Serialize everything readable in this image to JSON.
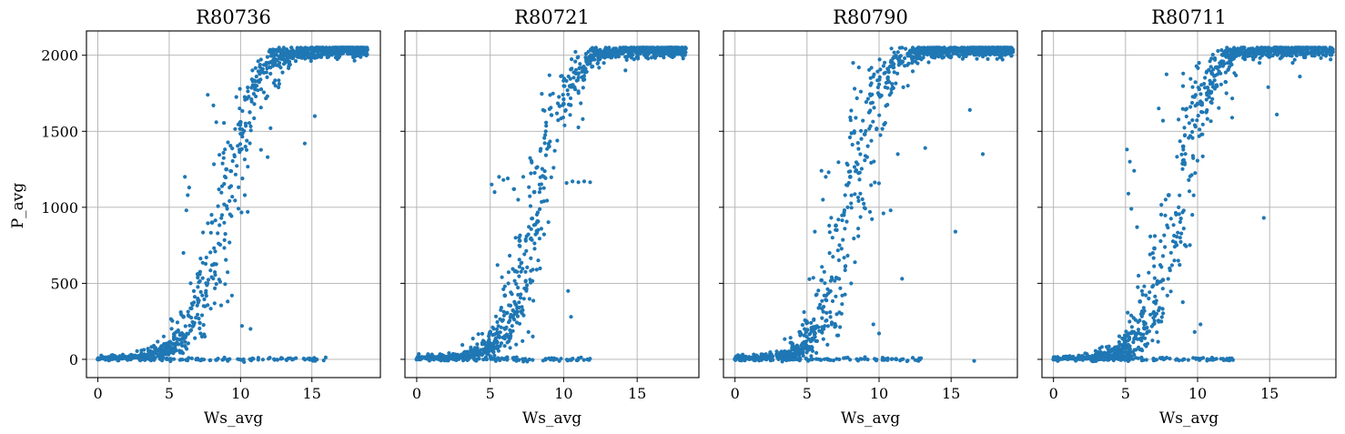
{
  "figure": {
    "ylabel": "P_avg"
  },
  "chart_data": [
    {
      "type": "scatter",
      "title": "R80736",
      "xlabel": "Ws_avg",
      "ylabel": "P_avg",
      "xlim": [
        -0.8,
        19.8
      ],
      "ylim": [
        -120,
        2160
      ],
      "xticks": [
        0,
        5,
        10,
        15
      ],
      "yticks": [
        0,
        500,
        1000,
        1500,
        2000
      ],
      "grid": true,
      "color": "#1f77b4",
      "curve": {
        "mid": 8.9,
        "width": 2.1,
        "pmax": 2040,
        "spread": 1.05,
        "xmax": 18.9
      },
      "series": [
        {
          "x": [
            0,
            1,
            2,
            3,
            4,
            5,
            6,
            7,
            8,
            9,
            10,
            11,
            12,
            13,
            14,
            15,
            16,
            17,
            18,
            18.8
          ],
          "y": [
            0,
            2,
            5,
            15,
            40,
            110,
            280,
            560,
            900,
            1250,
            1560,
            1800,
            1950,
            2010,
            2030,
            2035,
            2040,
            2040,
            2040,
            2045
          ]
        }
      ],
      "zero_line": {
        "x": [
          0,
          16
        ],
        "y": [
          0,
          0
        ]
      },
      "outliers": {
        "x": [
          6.1,
          6.4,
          6.3,
          6.2,
          7.7,
          8.1,
          8.3,
          10.3,
          10.5,
          12.1,
          7.0,
          7.3,
          6.5,
          6.0,
          8.0,
          9.1,
          9.4,
          11.9,
          14.5,
          15.2,
          10.1,
          10.7,
          5.5,
          5.8,
          5.9,
          7.5,
          6.8,
          7.2
        ],
        "y": [
          1200,
          1130,
          1080,
          980,
          1740,
          1670,
          1560,
          1080,
          970,
          1520,
          400,
          290,
          500,
          700,
          620,
          380,
          420,
          1330,
          1420,
          1600,
          220,
          200,
          180,
          130,
          90,
          150,
          140,
          170
        ]
      }
    },
    {
      "type": "scatter",
      "title": "R80721",
      "xlabel": "Ws_avg",
      "ylabel": "",
      "xlim": [
        -0.8,
        19.2
      ],
      "ylim": [
        -120,
        2160
      ],
      "xticks": [
        0,
        5,
        10,
        15
      ],
      "yticks": [
        0,
        500,
        1000,
        1500,
        2000
      ],
      "grid": true,
      "color": "#1f77b4",
      "curve": {
        "mid": 8.3,
        "width": 1.95,
        "pmax": 2040,
        "spread": 0.95,
        "xmax": 18.3
      },
      "series": [
        {
          "x": [
            0,
            1,
            2,
            3,
            4,
            5,
            6,
            7,
            8,
            9,
            10,
            11,
            12,
            13,
            14,
            15,
            16,
            17,
            18,
            18.3
          ],
          "y": [
            0,
            3,
            8,
            25,
            70,
            180,
            420,
            780,
            1100,
            1400,
            1680,
            1880,
            1990,
            2030,
            2035,
            2040,
            2040,
            2040,
            2040,
            2045
          ]
        }
      ],
      "zero_line": {
        "x": [
          0,
          12
        ],
        "y": [
          0,
          0
        ]
      },
      "outliers": {
        "x": [
          5.1,
          5.3,
          5.6,
          5.9,
          6.2,
          6.6,
          6.9,
          10.2,
          10.6,
          11.0,
          11.4,
          11.8,
          8.6,
          10.3,
          10.5,
          11.3,
          7.6,
          7.9,
          5.5,
          5.8,
          6.0,
          6.4,
          7.2,
          6.7,
          14.2
        ],
        "y": [
          1150,
          1100,
          1200,
          1180,
          1190,
          1120,
          1050,
          1160,
          1170,
          1165,
          1170,
          1165,
          1640,
          450,
          280,
          1580,
          180,
          150,
          620,
          540,
          480,
          440,
          120,
          300,
          1900
        ]
      }
    },
    {
      "type": "scatter",
      "title": "R80790",
      "xlabel": "Ws_avg",
      "ylabel": "",
      "xlim": [
        -0.8,
        19.6
      ],
      "ylim": [
        -120,
        2160
      ],
      "xticks": [
        0,
        5,
        10,
        15
      ],
      "yticks": [
        0,
        500,
        1000,
        1500,
        2000
      ],
      "grid": true,
      "color": "#1f77b4",
      "curve": {
        "mid": 8.0,
        "width": 1.85,
        "pmax": 2040,
        "spread": 1.25,
        "xmax": 19.3
      },
      "series": [
        {
          "x": [
            0,
            1,
            2,
            3,
            4,
            5,
            6,
            7,
            8,
            9,
            10,
            11,
            12,
            13,
            14,
            15,
            16,
            17,
            18,
            19.2
          ],
          "y": [
            0,
            3,
            10,
            30,
            90,
            240,
            520,
            880,
            1200,
            1480,
            1740,
            1920,
            2010,
            2030,
            2035,
            2040,
            2040,
            2040,
            2040,
            2045
          ]
        }
      ],
      "zero_line": {
        "x": [
          0,
          13
        ],
        "y": [
          0,
          0
        ]
      },
      "outliers": {
        "x": [
          6.0,
          6.3,
          6.5,
          6.1,
          8.2,
          8.6,
          8.3,
          10.3,
          10.8,
          11.3,
          11.6,
          12.0,
          13.2,
          15.3,
          16.3,
          17.2,
          5.9,
          6.2,
          6.6,
          7.0,
          7.4,
          9.6,
          10.0,
          5.5,
          5.7,
          16.6
        ],
        "y": [
          1240,
          1200,
          1230,
          1050,
          1950,
          1920,
          1780,
          960,
          980,
          1350,
          530,
          1800,
          1390,
          840,
          1640,
          1350,
          360,
          420,
          310,
          220,
          300,
          230,
          170,
          180,
          120,
          -10
        ]
      }
    },
    {
      "type": "scatter",
      "title": "R80711",
      "xlabel": "Ws_avg",
      "ylabel": "",
      "xlim": [
        -0.8,
        19.6
      ],
      "ylim": [
        -120,
        2160
      ],
      "xticks": [
        0,
        5,
        10,
        15
      ],
      "yticks": [
        0,
        500,
        1000,
        1500,
        2000
      ],
      "grid": true,
      "color": "#1f77b4",
      "curve": {
        "mid": 8.6,
        "width": 1.9,
        "pmax": 2040,
        "spread": 1.2,
        "xmax": 19.4
      },
      "series": [
        {
          "x": [
            0,
            1,
            2,
            3,
            4,
            5,
            6,
            7,
            8,
            9,
            10,
            11,
            12,
            13,
            14,
            15,
            16,
            17,
            18,
            19.3
          ],
          "y": [
            0,
            2,
            6,
            18,
            55,
            150,
            380,
            730,
            1080,
            1400,
            1680,
            1880,
            1990,
            2030,
            2035,
            2040,
            2040,
            2040,
            2040,
            2045
          ]
        }
      ],
      "zero_line": {
        "x": [
          0,
          12.5
        ],
        "y": [
          0,
          0
        ]
      },
      "outliers": {
        "x": [
          5.1,
          5.3,
          5.6,
          5.2,
          5.4,
          5.8,
          7.3,
          7.6,
          9.0,
          10.1,
          11.2,
          11.6,
          12.0,
          12.4,
          14.3,
          14.9,
          15.5,
          16.6,
          17.1,
          14.6,
          5.9,
          6.3,
          10.2,
          9.8,
          6.7,
          7.9
        ],
        "y": [
          1380,
          1300,
          1240,
          1090,
          990,
          870,
          1650,
          1570,
          1880,
          1950,
          1780,
          1880,
          1750,
          1590,
          1950,
          1790,
          1610,
          1950,
          1860,
          930,
          550,
          480,
          230,
          180,
          690,
          420
        ]
      }
    }
  ]
}
